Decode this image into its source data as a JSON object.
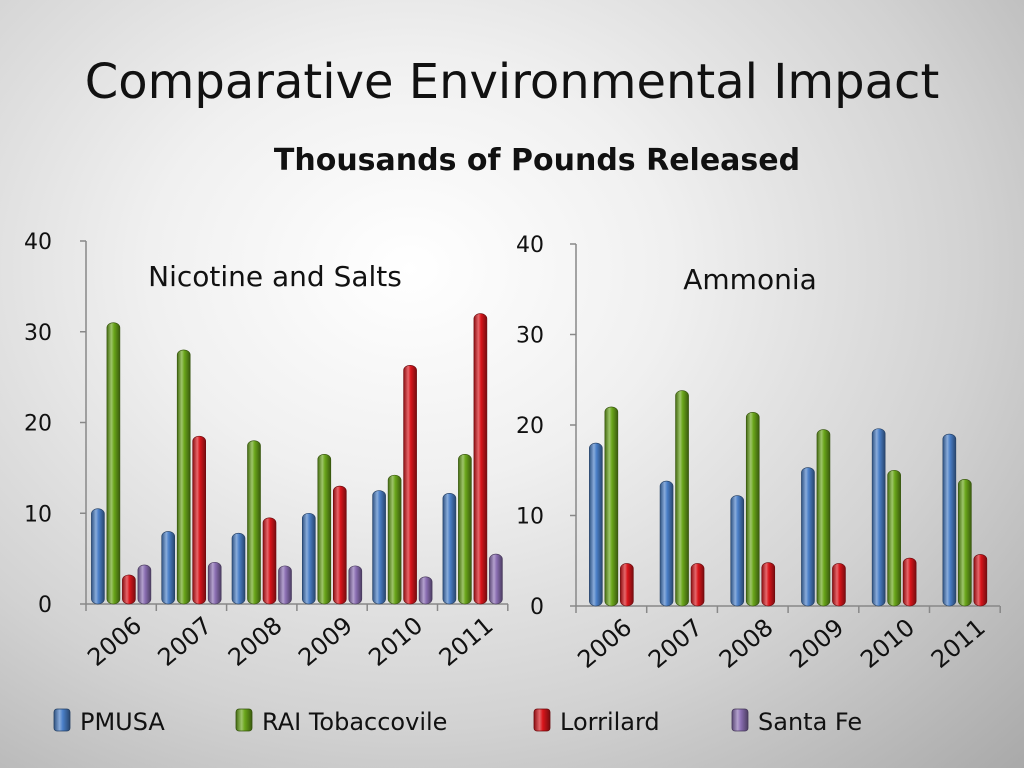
{
  "slide": {
    "title": "Comparative Environmental Impact",
    "subtitle": "Thousands of Pounds Released"
  },
  "colors": {
    "PMUSA": "#4a7fc8",
    "RAI Tobaccovile": "#6aa61a",
    "Lorrilard": "#d9151b",
    "Santa Fe": "#8b6fb3"
  },
  "legend": {
    "items": [
      "PMUSA",
      "RAI Tobaccovile",
      "Lorrilard",
      "Santa Fe"
    ]
  },
  "chart_data": [
    {
      "type": "bar",
      "title": "Nicotine and Salts",
      "categories": [
        "2006",
        "2007",
        "2008",
        "2009",
        "2010",
        "2011"
      ],
      "ylim": [
        0,
        40
      ],
      "yticks": [
        0,
        10,
        20,
        30,
        40
      ],
      "grid": false,
      "legend_position": "bottom",
      "series": [
        {
          "name": "PMUSA",
          "values": [
            10.5,
            8,
            7.8,
            10,
            12.5,
            12.2
          ]
        },
        {
          "name": "RAI Tobaccovile",
          "values": [
            31,
            28,
            18,
            16.5,
            14.2,
            16.5
          ]
        },
        {
          "name": "Lorrilard",
          "values": [
            3.2,
            18.5,
            9.5,
            13,
            26.3,
            32
          ]
        },
        {
          "name": "Santa Fe",
          "values": [
            4.3,
            4.6,
            4.2,
            4.2,
            3,
            5.5
          ]
        }
      ]
    },
    {
      "type": "bar",
      "title": "Ammonia",
      "categories": [
        "2006",
        "2007",
        "2008",
        "2009",
        "2010",
        "2011"
      ],
      "ylim": [
        0,
        40
      ],
      "yticks": [
        0,
        10,
        20,
        30,
        40
      ],
      "grid": false,
      "legend_position": "bottom",
      "series": [
        {
          "name": "PMUSA",
          "values": [
            18,
            13.8,
            12.2,
            15.3,
            19.6,
            19
          ]
        },
        {
          "name": "RAI Tobaccovile",
          "values": [
            22,
            23.8,
            21.4,
            19.5,
            15,
            14
          ]
        },
        {
          "name": "Lorrilard",
          "values": [
            4.7,
            4.7,
            4.8,
            4.7,
            5.3,
            5.7
          ]
        }
      ]
    }
  ]
}
